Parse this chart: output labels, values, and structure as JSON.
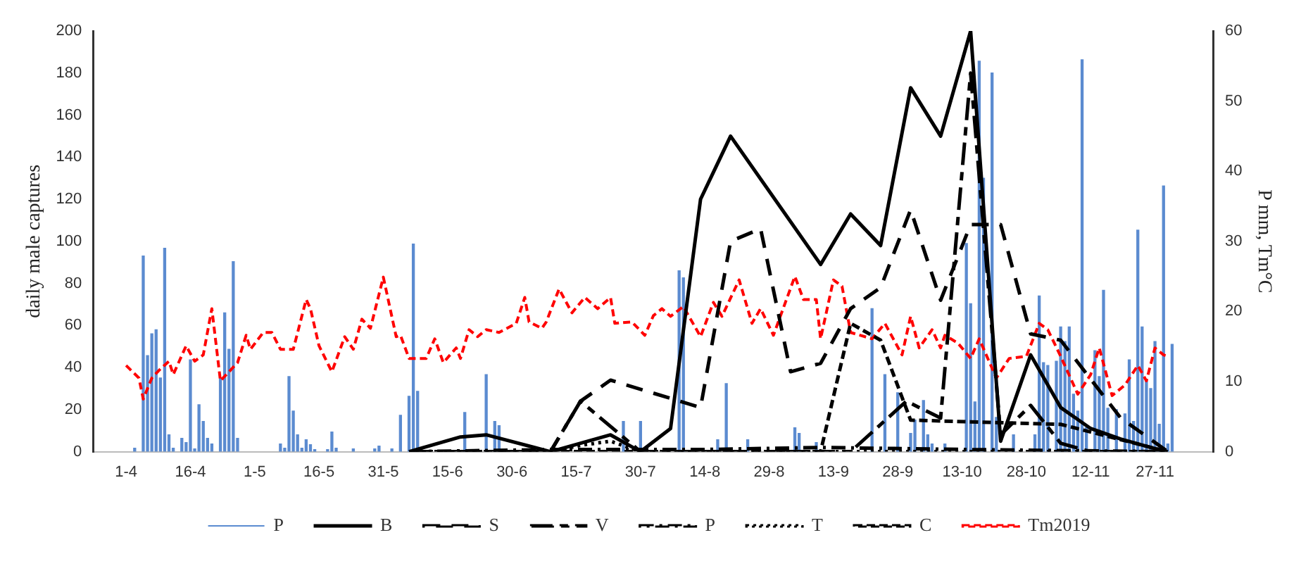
{
  "chart_data": {
    "type": "line",
    "ylabel": "daily male captures",
    "y2label": "P mm, Tm°C",
    "xlim": [
      "--04-01",
      "--12-03"
    ],
    "xticks": [
      {
        "value": "--04-01",
        "label": "1-4"
      },
      {
        "value": "--04-16",
        "label": "16-4"
      },
      {
        "value": "--05-01",
        "label": "1-5"
      },
      {
        "value": "--05-16",
        "label": "16-5"
      },
      {
        "value": "--05-31",
        "label": "31-5"
      },
      {
        "value": "--06-15",
        "label": "15-6"
      },
      {
        "value": "--06-30",
        "label": "30-6"
      },
      {
        "value": "--07-15",
        "label": "15-7"
      },
      {
        "value": "--07-30",
        "label": "30-7"
      },
      {
        "value": "--08-14",
        "label": "14-8"
      },
      {
        "value": "--08-29",
        "label": "29-8"
      },
      {
        "value": "--09-13",
        "label": "13-9"
      },
      {
        "value": "--09-28",
        "label": "28-9"
      },
      {
        "value": "--10-13",
        "label": "13-10"
      },
      {
        "value": "--10-28",
        "label": "28-10"
      },
      {
        "value": "--11-12",
        "label": "12-11"
      },
      {
        "value": "--11-27",
        "label": "27-11"
      }
    ],
    "ylim": [
      0,
      200
    ],
    "yticks": [
      0,
      20,
      40,
      60,
      80,
      100,
      120,
      140,
      160,
      180,
      200
    ],
    "y2lim": [
      0,
      60
    ],
    "y2ticks": [
      0,
      10,
      20,
      30,
      40,
      50,
      60
    ],
    "grid": false,
    "legend": "bottom",
    "series": [
      {
        "name": "P",
        "type": "bar",
        "axis": "y2",
        "color": "#5b8bd0",
        "x": [
          "--04-03",
          "--04-05",
          "--04-06",
          "--04-07",
          "--04-08",
          "--04-09",
          "--04-10",
          "--04-11",
          "--04-12",
          "--04-14",
          "--04-15",
          "--04-16",
          "--04-17",
          "--04-18",
          "--04-19",
          "--04-20",
          "--04-21",
          "--04-23",
          "--04-24",
          "--04-25",
          "--04-26",
          "--04-27",
          "--05-07",
          "--05-08",
          "--05-09",
          "--05-10",
          "--05-11",
          "--05-12",
          "--05-13",
          "--05-14",
          "--05-15",
          "--05-18",
          "--05-19",
          "--05-20",
          "--05-24",
          "--05-29",
          "--05-30",
          "--06-02",
          "--06-04",
          "--06-06",
          "--06-07",
          "--06-08",
          "--06-19",
          "--06-24",
          "--06-26",
          "--06-27",
          "--07-26",
          "--07-30",
          "--08-08",
          "--08-09",
          "--08-17",
          "--08-19",
          "--08-24",
          "--09-04",
          "--09-05",
          "--09-09",
          "--09-22",
          "--09-25",
          "--09-28",
          "--10-01",
          "--10-02",
          "--10-04",
          "--10-05",
          "--10-06",
          "--10-09",
          "--10-14",
          "--10-15",
          "--10-16",
          "--10-17",
          "--10-18",
          "--10-20",
          "--10-21",
          "--10-25",
          "--10-30",
          "--10-31",
          "--11-01",
          "--11-02",
          "--11-04",
          "--11-05",
          "--11-06",
          "--11-07",
          "--11-08",
          "--11-09",
          "--11-10",
          "--11-11",
          "--11-13",
          "--11-14",
          "--11-15",
          "--11-16",
          "--11-18",
          "--11-20",
          "--11-21",
          "--11-22",
          "--11-23",
          "--11-24",
          "--11-25",
          "--11-26",
          "--11-27",
          "--11-28",
          "--11-29",
          "--11-30",
          "--12-01"
        ],
        "values": [
          0.5,
          27.9,
          13.7,
          16.8,
          17.4,
          10.5,
          29,
          2.4,
          0.5,
          1.9,
          1.3,
          13.1,
          0.4,
          6.7,
          4.3,
          1.9,
          1.1,
          10.5,
          19.8,
          14.6,
          27.1,
          1.9,
          1.1,
          0.5,
          10.7,
          5.8,
          2.4,
          0.5,
          1.7,
          1,
          0.3,
          0.3,
          2.8,
          0.5,
          0.4,
          0.4,
          0.8,
          0.4,
          5.2,
          7.9,
          29.6,
          8.6,
          5.6,
          11,
          4.3,
          3.7,
          4.3,
          4.3,
          25.8,
          24.8,
          1.7,
          9.7,
          1.7,
          3.4,
          2.6,
          1.3,
          20.4,
          11,
          8.4,
          2.6,
          4.5,
          7.3,
          2.4,
          1.1,
          1.1,
          29.7,
          21.1,
          7.1,
          55.7,
          39,
          54,
          4.9,
          2.4,
          2.4,
          22.2,
          12.7,
          12.3,
          12.9,
          17.8,
          15.7,
          17.8,
          8.2,
          5.8,
          55.9,
          3.4,
          14.4,
          10.7,
          23,
          6.2,
          6,
          5.4,
          13.1,
          4.3,
          31.6,
          17.8,
          10.1,
          9,
          15.7,
          3.9,
          37.9,
          1.1,
          15.3
        ]
      },
      {
        "name": "B",
        "line_style": "solid",
        "color": "#000000",
        "x": [
          "--06-06",
          "--06-18",
          "--06-24",
          "--07-09",
          "--07-23",
          "--07-30",
          "--08-06",
          "--08-13",
          "--08-20",
          "--09-10",
          "--09-17",
          "--09-24",
          "--10-01",
          "--10-08",
          "--10-15",
          "--10-22",
          "--10-29",
          "--11-05",
          "--11-12",
          "--11-19",
          "--11-26",
          "--11-30"
        ],
        "values": [
          0,
          7,
          8,
          0,
          8,
          0,
          11,
          120,
          150,
          89,
          113,
          98,
          173,
          150,
          200,
          5,
          46,
          21,
          11,
          6,
          2,
          0
        ]
      },
      {
        "name": "S",
        "line_style": "dashed",
        "color": "#000000",
        "x": [
          "--06-06",
          "--07-09",
          "--07-16",
          "--07-23",
          "--08-13",
          "--08-20",
          "--08-27",
          "--09-03",
          "--09-10",
          "--09-17",
          "--09-24",
          "--10-01",
          "--10-08",
          "--10-15",
          "--10-22",
          "--10-29",
          "--11-05",
          "--11-19",
          "--11-30"
        ],
        "values": [
          0,
          0,
          24,
          34,
          21,
          100,
          106,
          38,
          42,
          68,
          78,
          115,
          72,
          108,
          108,
          56,
          53,
          16,
          0
        ]
      },
      {
        "name": "V",
        "line_style": "dashed",
        "color": "#000000",
        "x": [
          "--06-06",
          "--07-09",
          "--07-16",
          "--07-30",
          "--09-17",
          "--09-30",
          "--10-08",
          "--10-15",
          "--10-22",
          "--10-29",
          "--11-05",
          "--11-12",
          "--11-30"
        ],
        "values": [
          0,
          0,
          24,
          0,
          0,
          24,
          16,
          180,
          8,
          22,
          4,
          0,
          0
        ]
      },
      {
        "name": "P",
        "line_style": "dashed",
        "color": "#000000",
        "x": [
          "--06-06",
          "--07-09",
          "--08-13",
          "--09-10",
          "--10-15",
          "--11-30"
        ],
        "values": [
          0,
          1,
          1,
          2,
          1,
          0
        ]
      },
      {
        "name": "T",
        "line_style": "dotted",
        "color": "#000000",
        "x": [
          "--06-06",
          "--07-09",
          "--07-16",
          "--07-23",
          "--07-30",
          "--11-30"
        ],
        "values": [
          0,
          0,
          3,
          5,
          0,
          0
        ]
      },
      {
        "name": "C",
        "line_style": "dashed",
        "color": "#000000",
        "x": [
          "--06-06",
          "--09-10",
          "--09-17",
          "--09-24",
          "--10-01",
          "--11-05",
          "--11-30"
        ],
        "values": [
          0,
          0,
          61,
          53,
          15,
          13,
          0
        ]
      },
      {
        "name": "Tm2019",
        "line_style": "dashed",
        "axis": "y2",
        "color": "#ff0000",
        "x": [
          "--04-01",
          "--04-04",
          "--04-05",
          "--04-07",
          "--04-09",
          "--04-11",
          "--04-12",
          "--04-15",
          "--04-17",
          "--04-19",
          "--04-21",
          "--04-23",
          "--04-27",
          "--04-29",
          "--04-30",
          "--05-03",
          "--05-05",
          "--05-07",
          "--05-10",
          "--05-13",
          "--05-14",
          "--05-16",
          "--05-19",
          "--05-22",
          "--05-24",
          "--05-26",
          "--05-28",
          "--05-31",
          "--06-03",
          "--06-04",
          "--06-06",
          "--06-10",
          "--06-12",
          "--06-14",
          "--06-17",
          "--06-18",
          "--06-20",
          "--06-22",
          "--06-24",
          "--06-27",
          "--07-01",
          "--07-03",
          "--07-04",
          "--07-07",
          "--07-08",
          "--07-11",
          "--07-14",
          "--07-17",
          "--07-20",
          "--07-23",
          "--07-24",
          "--07-28",
          "--07-31",
          "--08-02",
          "--08-04",
          "--08-06",
          "--08-09",
          "--08-13",
          "--08-16",
          "--08-18",
          "--08-22",
          "--08-25",
          "--08-27",
          "--08-30",
          "--09-04",
          "--09-06",
          "--09-09",
          "--09-10",
          "--09-13",
          "--09-15",
          "--09-17",
          "--09-22",
          "--09-25",
          "--09-29",
          "--10-01",
          "--10-03",
          "--10-06",
          "--10-08",
          "--10-09",
          "--10-12",
          "--10-15",
          "--10-17",
          "--10-21",
          "--10-24",
          "--10-28",
          "--10-31",
          "--11-02",
          "--11-05",
          "--11-09",
          "--11-12",
          "--11-14",
          "--11-17",
          "--11-20",
          "--11-23",
          "--11-25",
          "--11-27",
          "--11-29",
          "--11-30"
        ],
        "values": [
          12.3,
          10.5,
          7.5,
          10.5,
          11.8,
          12.9,
          11,
          15.1,
          12.9,
          13.8,
          20.4,
          10.1,
          12.7,
          16.6,
          14.6,
          17,
          17,
          14.6,
          14.6,
          21.7,
          20.4,
          15.1,
          11.4,
          16.4,
          14.6,
          18.9,
          17.6,
          24.9,
          16.4,
          16.6,
          13.3,
          13.3,
          16.1,
          12.7,
          14.8,
          13.3,
          17.4,
          16.4,
          17.4,
          17,
          18.3,
          22,
          18.5,
          17.6,
          18.5,
          23.2,
          19.8,
          22,
          20.4,
          22,
          18.3,
          18.5,
          16.6,
          19.4,
          20.4,
          19.3,
          20.7,
          16.4,
          21.3,
          19.3,
          24.5,
          18.3,
          20.4,
          16.6,
          25,
          21.7,
          21.7,
          16.1,
          24.5,
          23.6,
          17,
          16.1,
          18.3,
          13.8,
          19.3,
          14.8,
          17.4,
          14.8,
          16.6,
          15.5,
          13.3,
          16.1,
          10.5,
          13.3,
          13.6,
          18.3,
          17.4,
          13.6,
          8.2,
          11,
          14.8,
          8,
          9.5,
          12.3,
          10.1,
          14.8,
          13.8,
          13.6
        ]
      }
    ]
  }
}
